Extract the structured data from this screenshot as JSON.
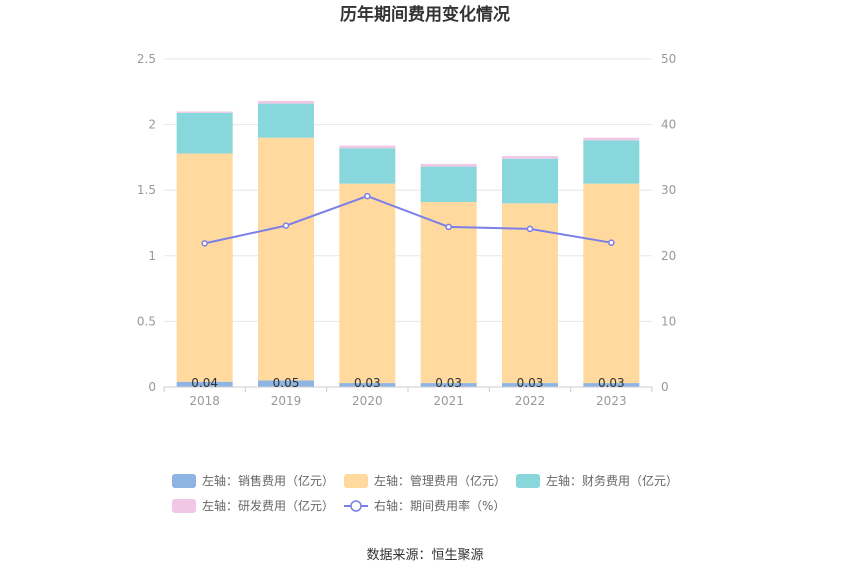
{
  "chart_data": {
    "type": "bar",
    "title": "历年期间费用变化情况",
    "categories": [
      "2018",
      "2019",
      "2020",
      "2021",
      "2022",
      "2023"
    ],
    "left_axis": {
      "min": 0,
      "max": 2.5,
      "ticks": [
        "0",
        "0.5",
        "1",
        "1.5",
        "2",
        "2.5"
      ]
    },
    "right_axis": {
      "min": 0,
      "max": 50,
      "ticks": [
        "0",
        "10",
        "20",
        "30",
        "40",
        "50"
      ]
    },
    "series": [
      {
        "name": "左轴：销售费用（亿元）",
        "type": "bar",
        "axis": "left",
        "color": "#8eb4e3",
        "values": [
          0.04,
          0.05,
          0.03,
          0.03,
          0.03,
          0.03
        ],
        "labels": [
          "0.04",
          "0.05",
          "0.03",
          "0.03",
          "0.03",
          "0.03"
        ]
      },
      {
        "name": "左轴：管理费用（亿元）",
        "type": "bar",
        "axis": "left",
        "color": "#ffd99e",
        "values": [
          1.74,
          1.85,
          1.52,
          1.38,
          1.37,
          1.52
        ]
      },
      {
        "name": "左轴：财务费用（亿元）",
        "type": "bar",
        "axis": "left",
        "color": "#88d7dc",
        "values": [
          0.31,
          0.26,
          0.27,
          0.27,
          0.34,
          0.33
        ]
      },
      {
        "name": "左轴：研发费用（亿元）",
        "type": "bar",
        "axis": "left",
        "color": "#f1c7e6",
        "values": [
          0.01,
          0.02,
          0.02,
          0.02,
          0.02,
          0.02
        ]
      },
      {
        "name": "右轴：期间费用率（%）",
        "type": "line",
        "axis": "right",
        "color": "#7b7fe8",
        "values": [
          21.9,
          24.6,
          29.1,
          24.4,
          24.1,
          22.0
        ]
      }
    ],
    "legend_position": "bottom",
    "grid": true
  },
  "source": "数据来源：恒生聚源"
}
